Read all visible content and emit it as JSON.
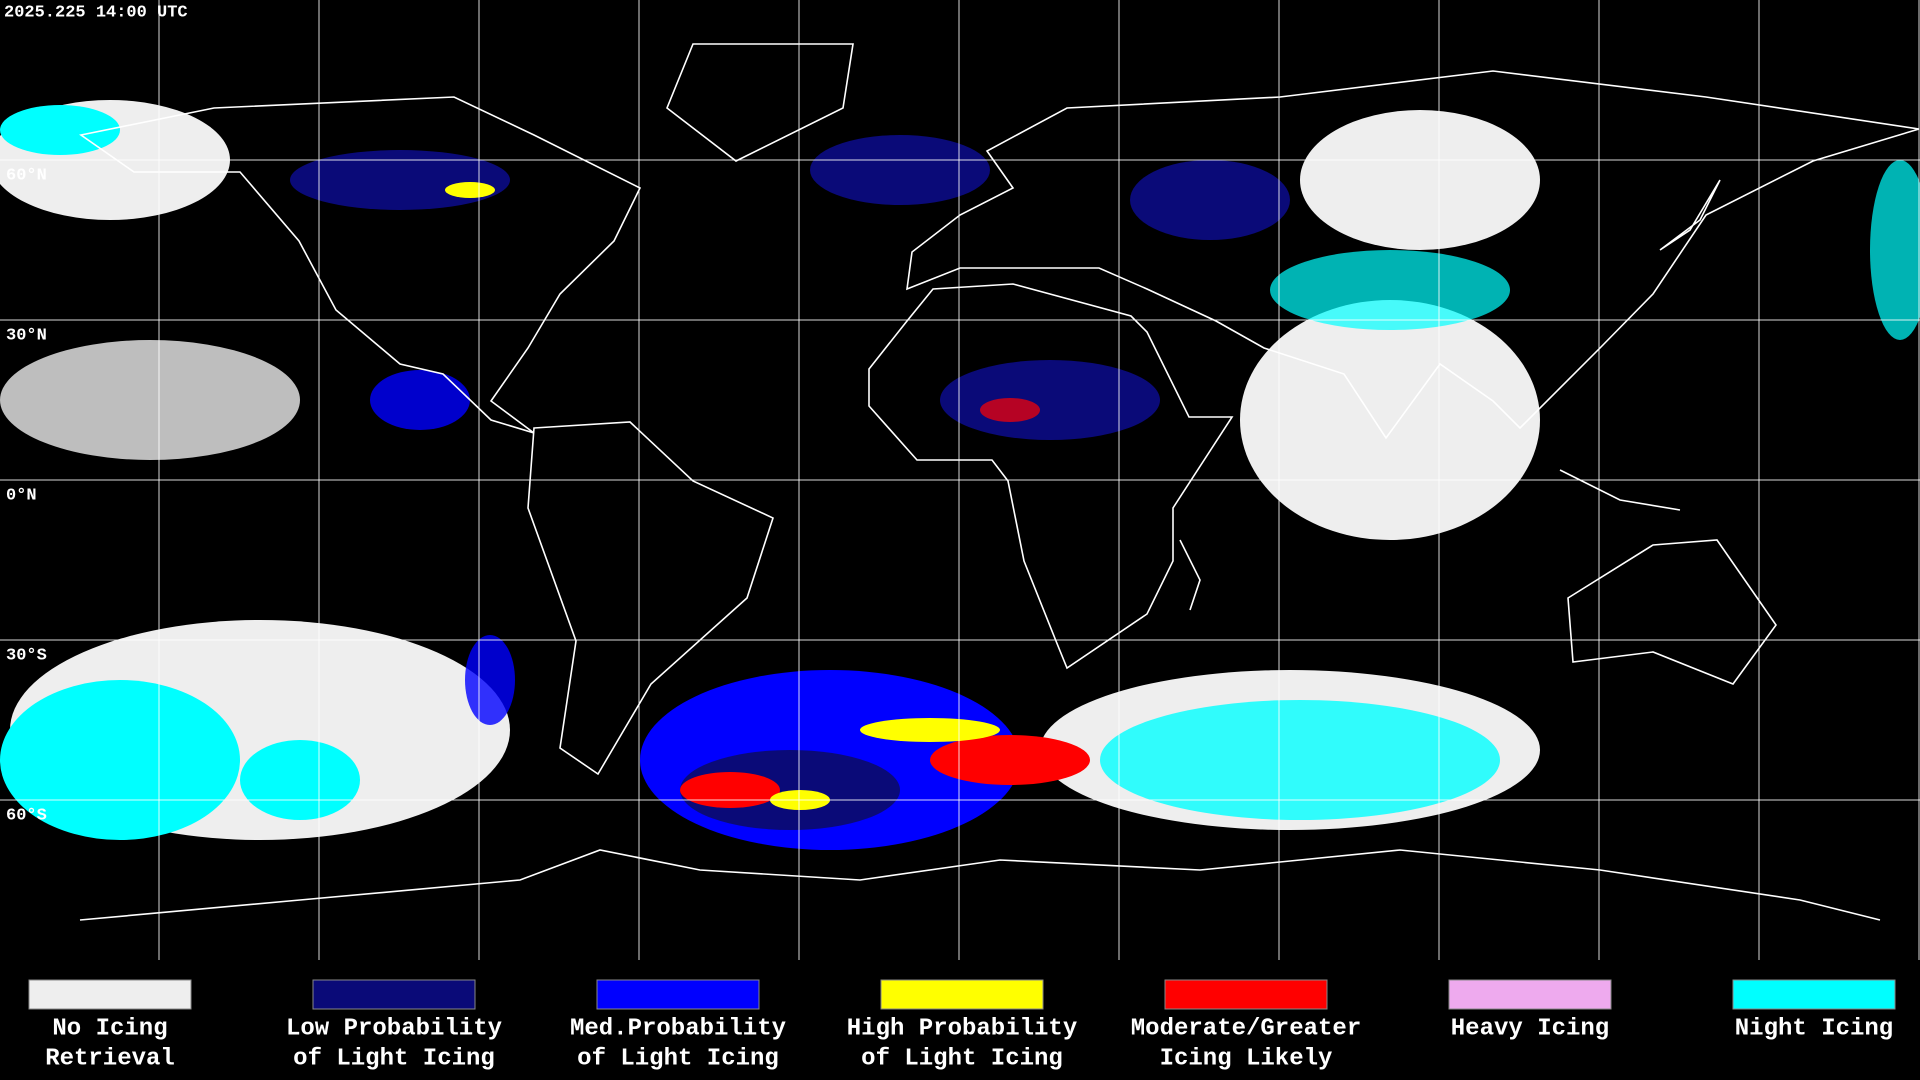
{
  "header": {
    "timestamp": "2025.225 14:00 UTC"
  },
  "map": {
    "latitude_labels": [
      "60°N",
      "30°N",
      "0°N",
      "30°S",
      "60°S"
    ]
  },
  "legend": {
    "items": [
      {
        "lines": [
          "No Icing",
          "Retrieval"
        ],
        "color": "#eeeeee"
      },
      {
        "lines": [
          "Low Probability",
          "of Light Icing"
        ],
        "color": "#0a0a78"
      },
      {
        "lines": [
          "Med.Probability",
          "of Light Icing"
        ],
        "color": "#0000ff"
      },
      {
        "lines": [
          "High Probability",
          "of Light Icing"
        ],
        "color": "#ffff00"
      },
      {
        "lines": [
          "Moderate/Greater",
          "Icing Likely"
        ],
        "color": "#ff0000"
      },
      {
        "lines": [
          "Heavy Icing"
        ],
        "color": "#eeaaee"
      },
      {
        "lines": [
          "Night Icing"
        ],
        "color": "#00ffff"
      }
    ]
  }
}
